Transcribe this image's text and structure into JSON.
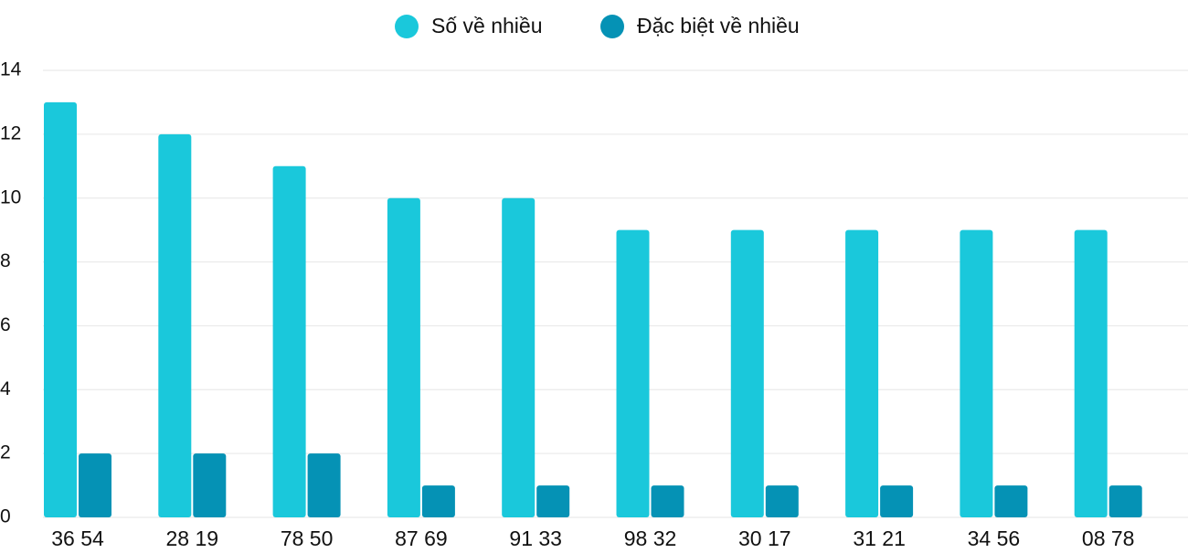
{
  "chart_data": {
    "type": "bar",
    "categories": [
      "36 54",
      "28 19",
      "78 50",
      "87 69",
      "91 33",
      "98 32",
      "30 17",
      "31 21",
      "34 56",
      "08 78"
    ],
    "series": [
      {
        "name": "Số về nhiều",
        "color": "#1ac8db",
        "values": [
          13,
          12,
          11,
          10,
          10,
          9,
          9,
          9,
          9,
          9
        ]
      },
      {
        "name": "Đặc biệt về nhiều",
        "color": "#0592b5",
        "values": [
          2,
          2,
          2,
          1,
          1,
          1,
          1,
          1,
          1,
          1
        ]
      }
    ],
    "ylim": [
      0,
      14
    ],
    "yticks": [
      0,
      2,
      4,
      6,
      8,
      10,
      12,
      14
    ],
    "grid": true
  }
}
